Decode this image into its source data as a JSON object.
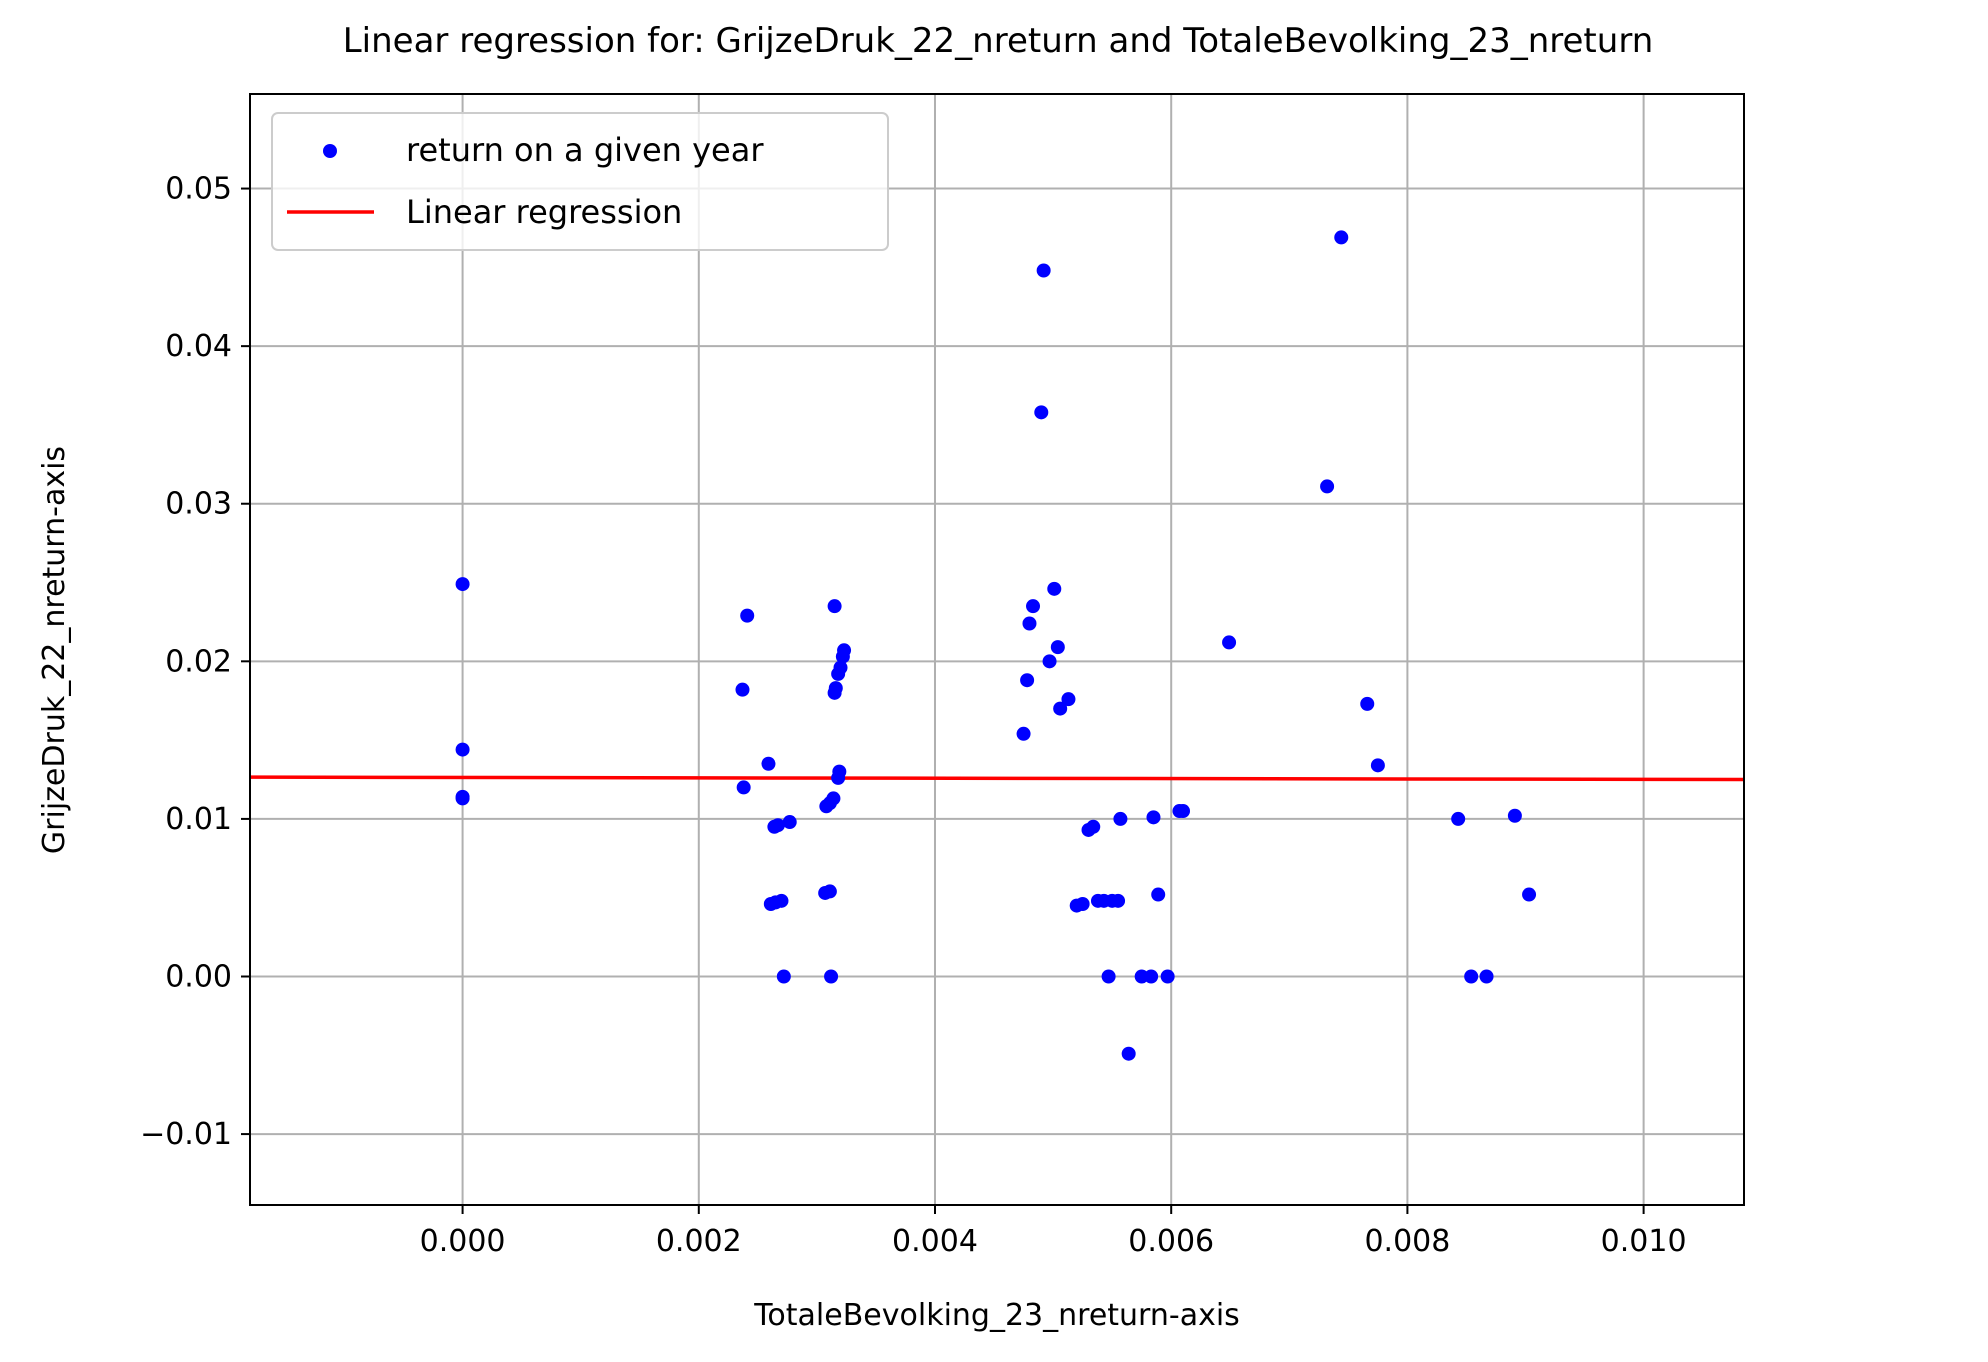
{
  "chart_data": {
    "type": "scatter",
    "title": "Linear regression for: GrijzeDruk_22_nreturn and TotaleBevolking_23_nreturn",
    "xlabel": "TotaleBevolking_23_nreturn-axis",
    "ylabel": "GrijzeDruk_22_nreturn-axis",
    "xlim": [
      -0.0018,
      0.01085
    ],
    "ylim": [
      -0.0145,
      0.056
    ],
    "xticks": [
      0.0,
      0.002,
      0.004,
      0.006,
      0.008,
      0.01
    ],
    "xtick_labels": [
      "0.000",
      "0.002",
      "0.004",
      "0.006",
      "0.008",
      "0.010"
    ],
    "yticks": [
      -0.01,
      0.0,
      0.01,
      0.02,
      0.03,
      0.04,
      0.05
    ],
    "ytick_labels": [
      "−0.01",
      "0.00",
      "0.01",
      "0.02",
      "0.03",
      "0.04",
      "0.05"
    ],
    "grid": true,
    "legend_position": "upper-left",
    "colors": {
      "scatter": "#0000ff",
      "regression": "#ff0000",
      "grid": "#b0b0b0",
      "axes": "#000000"
    },
    "series": [
      {
        "name": "return on a given year",
        "kind": "scatter",
        "points": [
          [
            0.0,
            0.0249
          ],
          [
            0.0,
            0.0144
          ],
          [
            0.0,
            0.0114
          ],
          [
            0.0,
            0.0113
          ],
          [
            0.00237,
            0.0182
          ],
          [
            0.00241,
            0.0229
          ],
          [
            0.00238,
            0.012
          ],
          [
            0.00259,
            0.0135
          ],
          [
            0.00264,
            0.0095
          ],
          [
            0.00267,
            0.0096
          ],
          [
            0.00277,
            0.0098
          ],
          [
            0.00261,
            0.0046
          ],
          [
            0.00265,
            0.0047
          ],
          [
            0.0027,
            0.0048
          ],
          [
            0.00272,
            0.0
          ],
          [
            0.00307,
            0.0053
          ],
          [
            0.00311,
            0.0054
          ],
          [
            0.00312,
            0.0
          ],
          [
            0.00308,
            0.0108
          ],
          [
            0.00311,
            0.011
          ],
          [
            0.00314,
            0.0113
          ],
          [
            0.00318,
            0.0126
          ],
          [
            0.00319,
            0.013
          ],
          [
            0.00315,
            0.018
          ],
          [
            0.00316,
            0.0183
          ],
          [
            0.00318,
            0.0192
          ],
          [
            0.0032,
            0.0196
          ],
          [
            0.00322,
            0.0203
          ],
          [
            0.00323,
            0.0207
          ],
          [
            0.00315,
            0.0235
          ],
          [
            0.00475,
            0.0154
          ],
          [
            0.00478,
            0.0188
          ],
          [
            0.0048,
            0.0224
          ],
          [
            0.00483,
            0.0235
          ],
          [
            0.0049,
            0.0358
          ],
          [
            0.00492,
            0.0448
          ],
          [
            0.00497,
            0.02
          ],
          [
            0.00501,
            0.0246
          ],
          [
            0.00504,
            0.0209
          ],
          [
            0.00506,
            0.017
          ],
          [
            0.00513,
            0.0176
          ],
          [
            0.0052,
            0.0045
          ],
          [
            0.00525,
            0.0046
          ],
          [
            0.0053,
            0.0093
          ],
          [
            0.00534,
            0.0095
          ],
          [
            0.00538,
            0.0048
          ],
          [
            0.00543,
            0.0048
          ],
          [
            0.00547,
            0.0
          ],
          [
            0.0055,
            0.0048
          ],
          [
            0.00555,
            0.0048
          ],
          [
            0.00557,
            0.01
          ],
          [
            0.00564,
            -0.0049
          ],
          [
            0.00575,
            0.0
          ],
          [
            0.00583,
            0.0
          ],
          [
            0.00585,
            0.0101
          ],
          [
            0.00589,
            0.0052
          ],
          [
            0.00597,
            0.0
          ],
          [
            0.00607,
            0.0105
          ],
          [
            0.0061,
            0.0105
          ],
          [
            0.00649,
            0.0212
          ],
          [
            0.00732,
            0.0311
          ],
          [
            0.00744,
            0.0469
          ],
          [
            0.00766,
            0.0173
          ],
          [
            0.00775,
            0.0134
          ],
          [
            0.00843,
            0.01
          ],
          [
            0.00854,
            0.0
          ],
          [
            0.00867,
            0.0
          ],
          [
            0.00891,
            0.0102
          ],
          [
            0.00903,
            0.0052
          ]
        ]
      },
      {
        "name": "Linear regression",
        "kind": "line",
        "points": [
          [
            -0.0018,
            0.01265
          ],
          [
            0.01085,
            0.0125
          ]
        ]
      }
    ]
  }
}
